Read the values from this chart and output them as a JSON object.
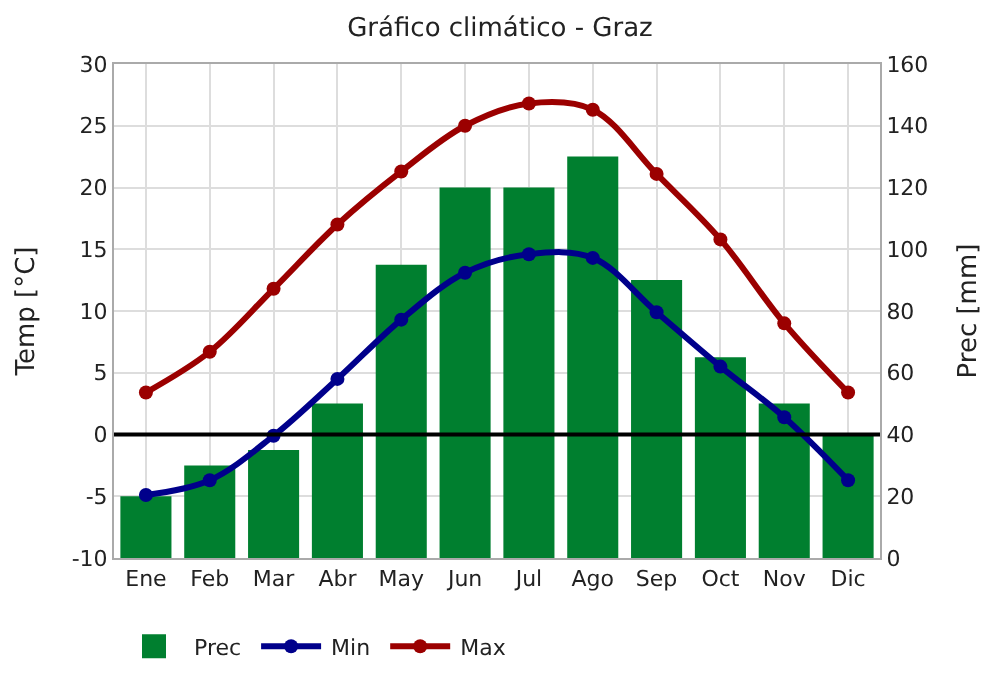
{
  "chart_data": {
    "type": "bar",
    "title": "Gráfico climático - Graz",
    "ylabel": "Temp [°C]",
    "y2label": "Prec [mm]",
    "categories": [
      "Ene",
      "Feb",
      "Mar",
      "Abr",
      "May",
      "Jun",
      "Jul",
      "Ago",
      "Sep",
      "Oct",
      "Nov",
      "Dic"
    ],
    "series": [
      {
        "name": "Prec",
        "axis": "y2",
        "color": "#007f2f",
        "values": [
          20,
          30,
          35,
          50,
          95,
          120,
          120,
          130,
          90,
          65,
          50,
          40
        ]
      },
      {
        "name": "Min",
        "type": "line",
        "axis": "y",
        "color": "#00008b",
        "values": [
          -4.9,
          -3.7,
          -0.1,
          4.5,
          9.3,
          13.1,
          14.6,
          14.3,
          9.9,
          5.5,
          1.4,
          -3.7
        ]
      },
      {
        "name": "Max",
        "type": "line",
        "axis": "y",
        "color": "#9b0000",
        "values": [
          3.4,
          6.7,
          11.8,
          17.0,
          21.3,
          25.0,
          26.8,
          26.3,
          21.1,
          15.8,
          9.0,
          3.4
        ]
      }
    ],
    "ylim": [
      -10,
      30
    ],
    "yticks": [
      -10,
      -5,
      0,
      5,
      10,
      15,
      20,
      25,
      30
    ],
    "y2lim": [
      0,
      160
    ],
    "y2ticks": [
      0,
      20,
      40,
      60,
      80,
      100,
      120,
      140,
      160
    ],
    "ref_lines": [
      {
        "axis": "y",
        "value": 0,
        "color": "#000000"
      }
    ],
    "grid": true,
    "legend": "bottom",
    "marker": "circle",
    "line_style": "solid"
  }
}
